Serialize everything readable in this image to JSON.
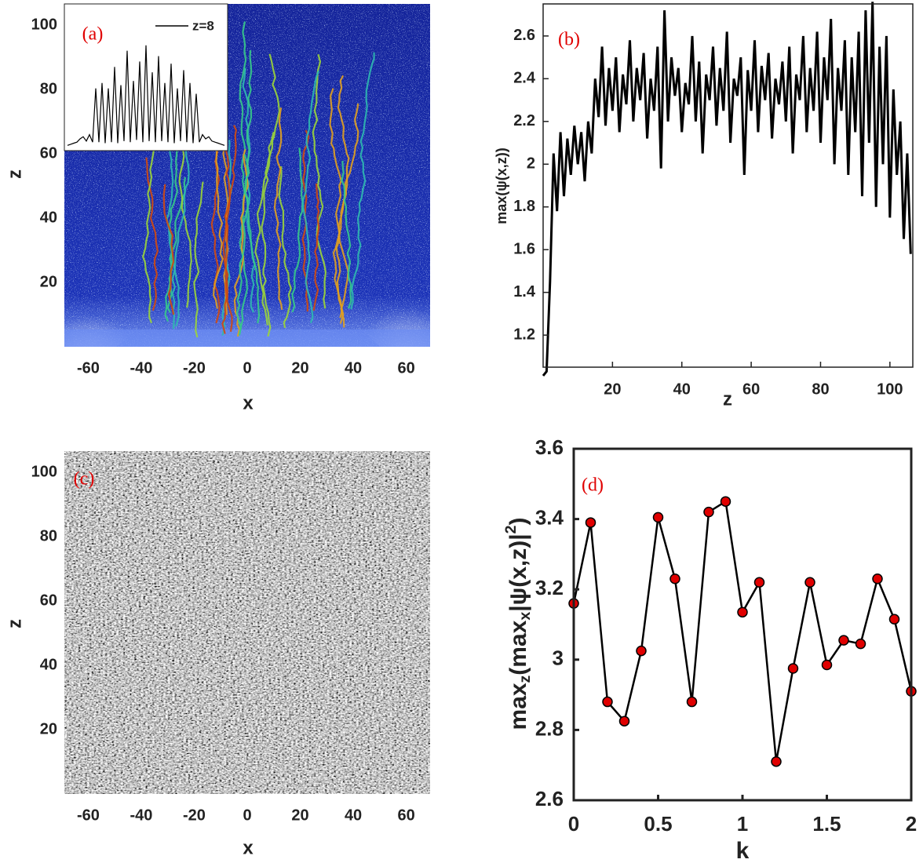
{
  "chart_data": [
    {
      "type": "heatmap",
      "label": "(a)",
      "xlabel": "x",
      "ylabel": "z",
      "colormap": "blue",
      "xlim": [
        -69,
        69
      ],
      "ylim": [
        0,
        106.6
      ],
      "xticks": [
        -60,
        -40,
        -20,
        0,
        20,
        40,
        60
      ],
      "yticks": [
        20,
        40,
        60,
        80,
        100
      ],
      "inset": {
        "type": "line",
        "series": [
          {
            "name": "z=8",
            "color": "#000000",
            "values": [
              0.02,
              0.03,
              0.04,
              0.05,
              0.08,
              0.1,
              0.06,
              0.12,
              0.05,
              0.55,
              0.05,
              0.6,
              0.04,
              0.55,
              0.05,
              0.75,
              0.04,
              0.58,
              0.06,
              0.9,
              0.05,
              0.62,
              0.07,
              0.8,
              0.05,
              0.95,
              0.06,
              0.7,
              0.05,
              0.85,
              0.06,
              0.6,
              0.05,
              0.78,
              0.04,
              0.55,
              0.06,
              0.72,
              0.05,
              0.6,
              0.04,
              0.5,
              0.05,
              0.12,
              0.08,
              0.1,
              0.06,
              0.05,
              0.04,
              0.03,
              0.02
            ]
          }
        ]
      }
    },
    {
      "type": "line",
      "label": "(b)",
      "xlabel": "z",
      "ylabel": "max(ψ(x,z))",
      "xlim": [
        0,
        106.6
      ],
      "ylim": [
        1.05,
        2.75
      ],
      "xticks": [
        20,
        40,
        60,
        80,
        100
      ],
      "yticks": [
        1.2,
        1.4,
        1.6,
        1.8,
        2,
        2.2,
        2.4,
        2.6
      ],
      "x": [
        0,
        1,
        2,
        3,
        4,
        5,
        6,
        7,
        8,
        9,
        10,
        11,
        12,
        13,
        14,
        15,
        16,
        17,
        18,
        19,
        20,
        21,
        22,
        23,
        24,
        25,
        26,
        27,
        28,
        29,
        30,
        31,
        32,
        33,
        34,
        35,
        36,
        37,
        38,
        39,
        40,
        41,
        42,
        43,
        44,
        45,
        46,
        47,
        48,
        49,
        50,
        51,
        52,
        53,
        54,
        55,
        56,
        57,
        58,
        59,
        60,
        61,
        62,
        63,
        64,
        65,
        66,
        67,
        68,
        69,
        70,
        71,
        72,
        73,
        74,
        75,
        76,
        77,
        78,
        79,
        80,
        81,
        82,
        83,
        84,
        85,
        86,
        87,
        88,
        89,
        90,
        91,
        92,
        93,
        94,
        95,
        96,
        97,
        98,
        99,
        100,
        101,
        102,
        103,
        104,
        105,
        106
      ],
      "series": [
        {
          "color": "#000000",
          "values": [
            1.01,
            1.03,
            1.45,
            2.05,
            1.78,
            2.15,
            1.85,
            2.12,
            1.95,
            2.18,
            2.0,
            2.15,
            1.92,
            2.2,
            2.05,
            2.4,
            2.22,
            2.55,
            2.18,
            2.45,
            2.25,
            2.5,
            2.15,
            2.42,
            2.28,
            2.58,
            2.2,
            2.45,
            2.3,
            2.52,
            2.12,
            2.4,
            2.25,
            2.55,
            1.98,
            2.72,
            2.2,
            2.5,
            2.32,
            2.45,
            2.15,
            2.38,
            2.28,
            2.6,
            2.2,
            2.48,
            2.05,
            2.42,
            2.3,
            2.55,
            2.18,
            2.45,
            2.25,
            2.62,
            2.1,
            2.4,
            2.32,
            2.5,
            1.95,
            2.44,
            2.25,
            2.58,
            2.15,
            2.46,
            2.3,
            2.52,
            2.12,
            2.4,
            2.28,
            2.48,
            2.2,
            2.55,
            2.05,
            2.42,
            2.3,
            2.6,
            2.15,
            2.45,
            2.25,
            2.62,
            2.1,
            2.5,
            2.3,
            2.68,
            2.0,
            2.45,
            2.25,
            2.58,
            1.95,
            2.5,
            2.15,
            2.62,
            1.85,
            2.72,
            2.1,
            2.76,
            1.8,
            2.55,
            2.0,
            2.6,
            1.75,
            2.35,
            1.95,
            2.2,
            1.65,
            2.05,
            1.58
          ]
        }
      ]
    },
    {
      "type": "heatmap",
      "label": "(c)",
      "xlabel": "x",
      "ylabel": "z",
      "colormap": "gray",
      "xlim": [
        -69,
        69
      ],
      "ylim": [
        0,
        106.6
      ],
      "xticks": [
        -60,
        -40,
        -20,
        0,
        20,
        40,
        60
      ],
      "yticks": [
        20,
        40,
        60,
        80,
        100
      ]
    },
    {
      "type": "line",
      "label": "(d)",
      "xlabel": "k",
      "ylabel": [
        "max",
        "z",
        "(max",
        "x",
        "|ψ(x,z)|",
        "2",
        ")"
      ],
      "marker": "circle",
      "marker_color": "#e00000",
      "xlim": [
        0,
        2
      ],
      "ylim": [
        2.6,
        3.6
      ],
      "xticks": [
        0,
        0.5,
        1,
        1.5,
        2
      ],
      "yticks": [
        2.6,
        2.8,
        3,
        3.2,
        3.4,
        3.6
      ],
      "x": [
        0,
        0.1,
        0.2,
        0.3,
        0.4,
        0.5,
        0.6,
        0.7,
        0.8,
        0.9,
        1,
        1.1,
        1.2,
        1.3,
        1.4,
        1.5,
        1.6,
        1.7,
        1.8,
        1.9,
        2
      ],
      "series": [
        {
          "color": "#000000",
          "values": [
            3.16,
            3.39,
            2.88,
            2.825,
            3.025,
            3.405,
            3.23,
            2.88,
            3.42,
            3.45,
            3.135,
            3.22,
            2.71,
            2.975,
            3.22,
            2.985,
            3.055,
            3.045,
            3.23,
            3.115,
            2.91
          ]
        }
      ]
    }
  ]
}
